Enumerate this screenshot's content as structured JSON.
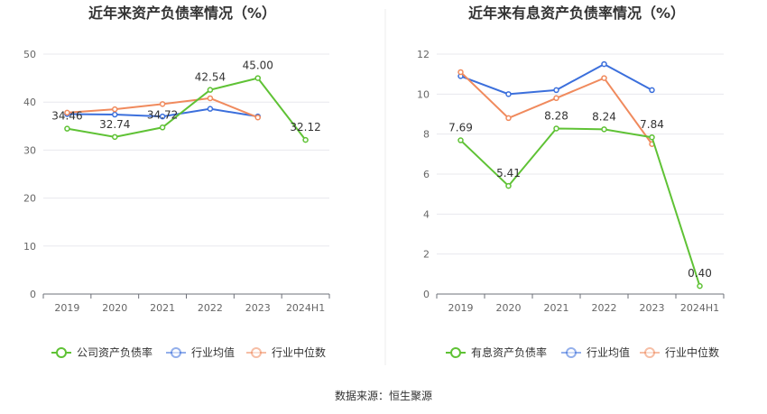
{
  "footer": {
    "source": "数据来源：恒生聚源"
  },
  "colors": {
    "company": "#5fc235",
    "avg": "#3b6fdc",
    "median": "#f08a5d"
  },
  "chart_data": [
    {
      "type": "line",
      "title": "近年来资产负债率情况（%）",
      "categories": [
        "2019",
        "2020",
        "2021",
        "2022",
        "2023",
        "2024H1"
      ],
      "ylim": [
        0,
        50
      ],
      "yticks": [
        "0",
        "10",
        "20",
        "30",
        "40",
        "50"
      ],
      "grid": true,
      "legend_position": "bottom",
      "series": [
        {
          "name": "公司资产负债率",
          "key": "company",
          "values": [
            34.46,
            32.74,
            34.72,
            42.54,
            45.0,
            32.12
          ],
          "labels": [
            "34.46",
            "32.74",
            "34.72",
            "42.54",
            "45.00",
            "32.12"
          ]
        },
        {
          "name": "行业均值",
          "key": "avg",
          "values": [
            37.5,
            37.4,
            37.0,
            38.6,
            37.0,
            null
          ]
        },
        {
          "name": "行业中位数",
          "key": "median",
          "values": [
            37.8,
            38.5,
            39.6,
            40.8,
            36.8,
            null
          ]
        }
      ]
    },
    {
      "type": "line",
      "title": "近年来有息资产负债率情况（%）",
      "categories": [
        "2019",
        "2020",
        "2021",
        "2022",
        "2023",
        "2024H1"
      ],
      "ylim": [
        0,
        12
      ],
      "yticks": [
        "0",
        "2",
        "4",
        "6",
        "8",
        "10",
        "12"
      ],
      "grid": true,
      "legend_position": "bottom",
      "series": [
        {
          "name": "有息资产负债率",
          "key": "company",
          "values": [
            7.69,
            5.41,
            8.28,
            8.24,
            7.84,
            0.4
          ],
          "labels": [
            "7.69",
            "5.41",
            "8.28",
            "8.24",
            "7.84",
            "0.40"
          ]
        },
        {
          "name": "行业均值",
          "key": "avg",
          "values": [
            10.9,
            10.0,
            10.2,
            11.5,
            10.2,
            null
          ]
        },
        {
          "name": "行业中位数",
          "key": "median",
          "values": [
            11.1,
            8.8,
            9.8,
            10.8,
            7.5,
            null
          ]
        }
      ]
    }
  ]
}
